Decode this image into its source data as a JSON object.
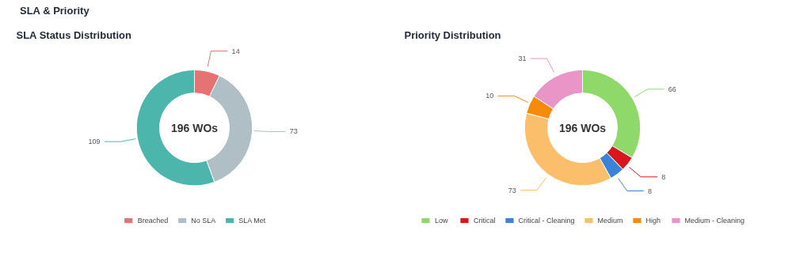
{
  "chart_data": [
    {
      "type": "donut",
      "title": "SLA Status Distribution",
      "categories": [
        "Breached",
        "No SLA",
        "SLA Met"
      ],
      "values": [
        14,
        73,
        109
      ],
      "colors": [
        "#e57373",
        "#b0bec5",
        "#4db6ac"
      ],
      "data_labels": true,
      "legend": "bottom",
      "annotations": [
        "SLA & Priority",
        "196 WOs"
      ]
    },
    {
      "type": "donut",
      "title": "Priority Distribution",
      "categories": [
        "Low",
        "Critical",
        "Critical - Cleaning",
        "Medium",
        "High",
        "Medium - Cleaning"
      ],
      "values": [
        66,
        8,
        8,
        73,
        10,
        31
      ],
      "colors": [
        "#8fd96a",
        "#d9161c",
        "#3b82d9",
        "#fbbf6b",
        "#f68a0a",
        "#e995c8"
      ],
      "data_labels": true,
      "legend": "bottom",
      "annotations": [
        "196 WOs"
      ]
    }
  ]
}
